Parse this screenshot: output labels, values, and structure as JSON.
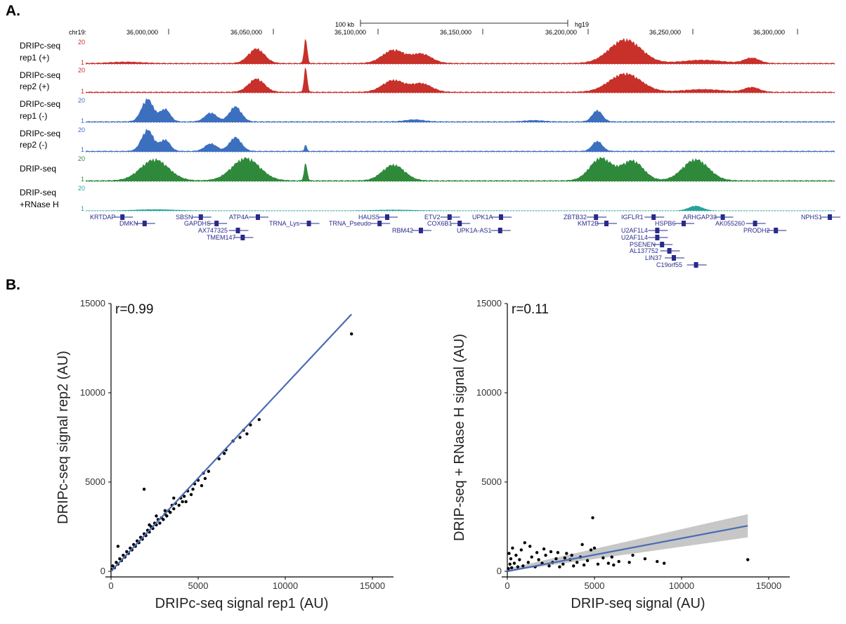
{
  "panel_a": {
    "label": "A.",
    "scale_bar": {
      "length": "100 kb",
      "assembly": "hg19"
    },
    "chrom": "chr19:",
    "positions": [
      "36,000,000",
      "36,050,000",
      "36,100,000",
      "36,150,000",
      "36,200,000",
      "36,250,000",
      "36,300,000"
    ],
    "tracks": [
      {
        "name1": "DRIPc-seq",
        "name2": "rep1 (+)",
        "color": "#c8302a",
        "ymax": "20",
        "ymin": "1"
      },
      {
        "name1": "DRIPc-seq",
        "name2": "rep2 (+)",
        "color": "#c8302a",
        "ymax": "20",
        "ymin": "1"
      },
      {
        "name1": "DRIPc-seq",
        "name2": "rep1 (-)",
        "color": "#3d6fbf",
        "ymax": "20",
        "ymin": "1"
      },
      {
        "name1": "DRIPc-seq",
        "name2": "rep2 (-)",
        "color": "#3d6fbf",
        "ymax": "20",
        "ymin": "1"
      },
      {
        "name1": "DRIP-seq",
        "name2": "",
        "color": "#2e8a3a",
        "ymax": "20",
        "ymin": "1"
      },
      {
        "name1": "DRIP-seq",
        "name2": "+RNase H",
        "color": "#27a39a",
        "ymax": "20",
        "ymin": "1"
      }
    ],
    "genes": [
      "KRTDAP",
      "DMKN",
      "SBSN",
      "GAPDHS",
      "AX747325",
      "TMEM147",
      "ATP4A",
      "TRNA_Lys",
      "HAUS5",
      "TRNA_Pseudo",
      "RBM42",
      "ETV2",
      "COX6B1",
      "UPK1A",
      "UPK1A-AS1",
      "ZBTB32",
      "KMT2B",
      "IGFLR1",
      "U2AF1L4",
      "U2AF1L4",
      "PSENEN",
      "AL137752",
      "LIN37",
      "C19orf55",
      "HSPB6",
      "ARHGAP33",
      "AK055260",
      "PRODH2",
      "NPHS1"
    ]
  },
  "panel_b": {
    "label": "B."
  },
  "chart_data": [
    {
      "type": "scatter",
      "title": "",
      "annotation": "r=0.99",
      "xlabel": "DRIPc-seq signal rep1 (AU)",
      "ylabel": "DRIPc-seq signal rep2 (AU)",
      "xlim": [
        0,
        15000
      ],
      "ylim": [
        0,
        15000
      ],
      "xticks": [
        0,
        5000,
        10000,
        15000
      ],
      "yticks": [
        0,
        5000,
        10000,
        15000
      ],
      "grid": false,
      "point_color": "#000000",
      "fit_color": "#4a6cb3",
      "fit_line": {
        "x": [
          0,
          13800
        ],
        "y": [
          0,
          14400
        ]
      },
      "points": [
        [
          13800,
          13300
        ],
        [
          8500,
          8500
        ],
        [
          8000,
          8200
        ],
        [
          7600,
          7900
        ],
        [
          7800,
          7700
        ],
        [
          7400,
          7500
        ],
        [
          7000,
          7300
        ],
        [
          6600,
          6800
        ],
        [
          6500,
          6600
        ],
        [
          6200,
          6300
        ],
        [
          5600,
          5600
        ],
        [
          5300,
          5500
        ],
        [
          5400,
          5200
        ],
        [
          5000,
          5100
        ],
        [
          5200,
          4800
        ],
        [
          4800,
          4900
        ],
        [
          4700,
          4600
        ],
        [
          4600,
          4300
        ],
        [
          4400,
          4500
        ],
        [
          4200,
          4200
        ],
        [
          4100,
          3900
        ],
        [
          4000,
          4100
        ],
        [
          3900,
          3700
        ],
        [
          3700,
          3800
        ],
        [
          3600,
          3500
        ],
        [
          3500,
          3700
        ],
        [
          3400,
          3300
        ],
        [
          3300,
          3400
        ],
        [
          3200,
          3100
        ],
        [
          3100,
          3200
        ],
        [
          3000,
          2900
        ],
        [
          2900,
          3000
        ],
        [
          2800,
          2700
        ],
        [
          2700,
          2900
        ],
        [
          2600,
          2600
        ],
        [
          2500,
          2700
        ],
        [
          2400,
          2400
        ],
        [
          2300,
          2500
        ],
        [
          2200,
          2200
        ],
        [
          2100,
          2300
        ],
        [
          2000,
          2000
        ],
        [
          1900,
          2100
        ],
        [
          1800,
          1800
        ],
        [
          1700,
          1900
        ],
        [
          1600,
          1600
        ],
        [
          1500,
          1700
        ],
        [
          1400,
          1400
        ],
        [
          1300,
          1500
        ],
        [
          1200,
          1200
        ],
        [
          1100,
          1300
        ],
        [
          1000,
          1000
        ],
        [
          900,
          1100
        ],
        [
          800,
          800
        ],
        [
          700,
          900
        ],
        [
          600,
          600
        ],
        [
          500,
          700
        ],
        [
          400,
          400
        ],
        [
          300,
          500
        ],
        [
          200,
          200
        ],
        [
          100,
          300
        ],
        [
          50,
          100
        ],
        [
          1900,
          4600
        ],
        [
          400,
          1400
        ],
        [
          2200,
          2600
        ],
        [
          2600,
          3100
        ],
        [
          3100,
          3400
        ],
        [
          3600,
          4100
        ],
        [
          4300,
          3900
        ]
      ]
    },
    {
      "type": "scatter",
      "title": "",
      "annotation": "r=0.11",
      "xlabel": "DRIP-seq signal (AU)",
      "ylabel": "DRIP-seq + RNase H signal (AU)",
      "xlim": [
        0,
        15000
      ],
      "ylim": [
        0,
        15000
      ],
      "xticks": [
        0,
        5000,
        10000,
        15000
      ],
      "yticks": [
        0,
        5000,
        10000,
        15000
      ],
      "grid": false,
      "point_color": "#000000",
      "fit_color": "#4a6cb3",
      "band_color": "#bdbdbd",
      "fit_line": {
        "x": [
          0,
          13800
        ],
        "y": [
          0,
          2550
        ]
      },
      "confidence_band": {
        "x": [
          0,
          13800
        ],
        "lower": [
          0,
          1900
        ],
        "upper": [
          150,
          3200
        ]
      },
      "points": [
        [
          13800,
          650
        ],
        [
          4900,
          3000
        ],
        [
          8600,
          550
        ],
        [
          7200,
          900
        ],
        [
          7000,
          500
        ],
        [
          6400,
          550
        ],
        [
          6100,
          350
        ],
        [
          5800,
          450
        ],
        [
          5500,
          750
        ],
        [
          5200,
          400
        ],
        [
          4800,
          1200
        ],
        [
          4600,
          600
        ],
        [
          4400,
          350
        ],
        [
          4200,
          800
        ],
        [
          4000,
          500
        ],
        [
          3800,
          300
        ],
        [
          3600,
          650
        ],
        [
          3400,
          1000
        ],
        [
          3200,
          400
        ],
        [
          3000,
          250
        ],
        [
          2800,
          700
        ],
        [
          2600,
          500
        ],
        [
          2400,
          300
        ],
        [
          2200,
          900
        ],
        [
          2000,
          450
        ],
        [
          1800,
          650
        ],
        [
          1600,
          250
        ],
        [
          1400,
          800
        ],
        [
          1200,
          500
        ],
        [
          1000,
          1600
        ],
        [
          900,
          300
        ],
        [
          800,
          1200
        ],
        [
          700,
          650
        ],
        [
          600,
          250
        ],
        [
          500,
          900
        ],
        [
          400,
          450
        ],
        [
          300,
          1300
        ],
        [
          250,
          200
        ],
        [
          200,
          700
        ],
        [
          150,
          400
        ],
        [
          100,
          1000
        ],
        [
          60,
          150
        ],
        [
          2500,
          1100
        ],
        [
          3700,
          900
        ],
        [
          4300,
          1500
        ],
        [
          5000,
          1300
        ],
        [
          6000,
          800
        ],
        [
          7900,
          700
        ],
        [
          9000,
          450
        ],
        [
          1300,
          1400
        ],
        [
          1700,
          1050
        ],
        [
          2100,
          1250
        ],
        [
          2900,
          1050
        ],
        [
          3300,
          750
        ]
      ]
    }
  ]
}
